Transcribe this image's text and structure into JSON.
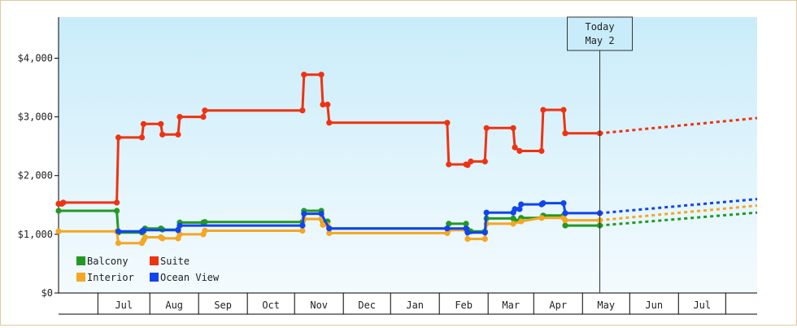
{
  "chart_data": {
    "type": "line",
    "title": "",
    "xlabel": "",
    "ylabel": "",
    "ylim": [
      0,
      4700
    ],
    "y_ticks": [
      0,
      1000,
      2000,
      3000,
      4000
    ],
    "y_tick_labels": [
      "$0",
      "$1,000",
      "$2,000",
      "$3,000",
      "$4,000"
    ],
    "x_range": [
      "2023-05-24",
      "2024-08-10"
    ],
    "months": [
      {
        "label": "Jul",
        "start": "2023-06-18",
        "end": "2023-07-21"
      },
      {
        "label": "Aug",
        "start": "2023-07-21",
        "end": "2023-08-21"
      },
      {
        "label": "Sep",
        "start": "2023-08-21",
        "end": "2023-09-21"
      },
      {
        "label": "Oct",
        "start": "2023-09-21",
        "end": "2023-10-21"
      },
      {
        "label": "Nov",
        "start": "2023-10-21",
        "end": "2023-11-21"
      },
      {
        "label": "Dec",
        "start": "2023-11-21",
        "end": "2023-12-21"
      },
      {
        "label": "Jan",
        "start": "2023-12-21",
        "end": "2024-01-21"
      },
      {
        "label": "Feb",
        "start": "2024-01-21",
        "end": "2024-02-21"
      },
      {
        "label": "Mar",
        "start": "2024-02-21",
        "end": "2024-03-21"
      },
      {
        "label": "Apr",
        "start": "2024-03-21",
        "end": "2024-04-21"
      },
      {
        "label": "May",
        "start": "2024-04-21",
        "end": "2024-05-21"
      },
      {
        "label": "Jun",
        "start": "2024-05-21",
        "end": "2024-06-21"
      },
      {
        "label": "Jul",
        "start": "2024-06-21",
        "end": "2024-07-21"
      }
    ],
    "today": {
      "date": "2024-05-02",
      "line1": "Today",
      "line2": "May 2"
    },
    "legend": {
      "placement": "bottom-left"
    },
    "grid": false,
    "series": [
      {
        "name": "Balcony",
        "color": "#229922",
        "points": [
          [
            "2023-05-24",
            1400
          ],
          [
            "2023-06-30",
            1400
          ],
          [
            "2023-07-01",
            1030
          ],
          [
            "2023-07-16",
            1030
          ],
          [
            "2023-07-17",
            1050
          ],
          [
            "2023-07-18",
            1100
          ],
          [
            "2023-07-28",
            1100
          ],
          [
            "2023-07-29",
            1080
          ],
          [
            "2023-08-08",
            1080
          ],
          [
            "2023-08-09",
            1200
          ],
          [
            "2023-08-24",
            1200
          ],
          [
            "2023-08-25",
            1210
          ],
          [
            "2023-10-26",
            1210
          ],
          [
            "2023-10-27",
            1400
          ],
          [
            "2023-11-07",
            1400
          ],
          [
            "2023-11-08",
            1220
          ],
          [
            "2023-11-11",
            1220
          ],
          [
            "2023-11-12",
            1100
          ],
          [
            "2024-01-26",
            1100
          ],
          [
            "2024-01-27",
            1180
          ],
          [
            "2024-02-07",
            1180
          ],
          [
            "2024-02-08",
            1080
          ],
          [
            "2024-02-10",
            1050
          ],
          [
            "2024-02-19",
            1050
          ],
          [
            "2024-02-20",
            1270
          ],
          [
            "2024-03-08",
            1270
          ],
          [
            "2024-03-09",
            1230
          ],
          [
            "2024-03-12",
            1230
          ],
          [
            "2024-03-13",
            1280
          ],
          [
            "2024-03-26",
            1280
          ],
          [
            "2024-03-27",
            1320
          ],
          [
            "2024-04-09",
            1320
          ],
          [
            "2024-04-10",
            1150
          ],
          [
            "2024-05-02",
            1150
          ]
        ],
        "forecast": [
          [
            "2024-05-02",
            1150
          ],
          [
            "2024-08-10",
            1370
          ]
        ]
      },
      {
        "name": "Suite",
        "color": "#ee3311",
        "points": [
          [
            "2023-05-24",
            1520
          ],
          [
            "2023-05-26",
            1520
          ],
          [
            "2023-05-27",
            1540
          ],
          [
            "2023-06-30",
            1540
          ],
          [
            "2023-07-01",
            2650
          ],
          [
            "2023-07-16",
            2650
          ],
          [
            "2023-07-17",
            2880
          ],
          [
            "2023-07-28",
            2880
          ],
          [
            "2023-07-29",
            2700
          ],
          [
            "2023-08-08",
            2700
          ],
          [
            "2023-08-09",
            3000
          ],
          [
            "2023-08-24",
            3000
          ],
          [
            "2023-08-25",
            3110
          ],
          [
            "2023-10-26",
            3110
          ],
          [
            "2023-10-27",
            3720
          ],
          [
            "2023-11-07",
            3720
          ],
          [
            "2023-11-08",
            3210
          ],
          [
            "2023-11-11",
            3210
          ],
          [
            "2023-11-12",
            2900
          ],
          [
            "2024-01-26",
            2900
          ],
          [
            "2024-01-27",
            2190
          ],
          [
            "2024-02-07",
            2190
          ],
          [
            "2024-02-08",
            2180
          ],
          [
            "2024-02-10",
            2240
          ],
          [
            "2024-02-19",
            2240
          ],
          [
            "2024-02-20",
            2810
          ],
          [
            "2024-03-08",
            2810
          ],
          [
            "2024-03-09",
            2480
          ],
          [
            "2024-03-12",
            2420
          ],
          [
            "2024-03-26",
            2420
          ],
          [
            "2024-03-27",
            3120
          ],
          [
            "2024-04-09",
            3120
          ],
          [
            "2024-04-10",
            2720
          ],
          [
            "2024-05-02",
            2720
          ]
        ],
        "forecast": [
          [
            "2024-05-02",
            2720
          ],
          [
            "2024-08-10",
            2980
          ]
        ]
      },
      {
        "name": "Interior",
        "color": "#f5a623",
        "points": [
          [
            "2023-05-24",
            1050
          ],
          [
            "2023-06-30",
            1050
          ],
          [
            "2023-07-01",
            850
          ],
          [
            "2023-07-16",
            850
          ],
          [
            "2023-07-17",
            900
          ],
          [
            "2023-07-18",
            950
          ],
          [
            "2023-07-28",
            950
          ],
          [
            "2023-07-29",
            930
          ],
          [
            "2023-08-08",
            930
          ],
          [
            "2023-08-09",
            1000
          ],
          [
            "2023-08-24",
            1000
          ],
          [
            "2023-08-25",
            1060
          ],
          [
            "2023-10-26",
            1060
          ],
          [
            "2023-10-27",
            1260
          ],
          [
            "2023-11-07",
            1260
          ],
          [
            "2023-11-08",
            1160
          ],
          [
            "2023-11-11",
            1160
          ],
          [
            "2023-11-12",
            1020
          ],
          [
            "2024-01-26",
            1020
          ],
          [
            "2024-01-27",
            1070
          ],
          [
            "2024-02-07",
            1070
          ],
          [
            "2024-02-08",
            920
          ],
          [
            "2024-02-19",
            920
          ],
          [
            "2024-02-20",
            1180
          ],
          [
            "2024-03-08",
            1180
          ],
          [
            "2024-03-13",
            1220
          ],
          [
            "2024-03-26",
            1280
          ],
          [
            "2024-04-09",
            1280
          ],
          [
            "2024-04-10",
            1240
          ],
          [
            "2024-05-02",
            1240
          ]
        ],
        "forecast": [
          [
            "2024-05-02",
            1240
          ],
          [
            "2024-08-10",
            1490
          ]
        ]
      },
      {
        "name": "Ocean View",
        "color": "#1144ee",
        "points": [
          [
            "2023-07-01",
            1050
          ],
          [
            "2023-07-16",
            1050
          ],
          [
            "2023-07-17",
            1070
          ],
          [
            "2023-08-08",
            1070
          ],
          [
            "2023-08-09",
            1150
          ],
          [
            "2023-10-26",
            1150
          ],
          [
            "2023-10-27",
            1350
          ],
          [
            "2023-11-07",
            1350
          ],
          [
            "2023-11-12",
            1100
          ],
          [
            "2024-01-26",
            1100
          ],
          [
            "2024-02-07",
            1100
          ],
          [
            "2024-02-08",
            1030
          ],
          [
            "2024-02-19",
            1030
          ],
          [
            "2024-02-20",
            1370
          ],
          [
            "2024-03-08",
            1370
          ],
          [
            "2024-03-09",
            1430
          ],
          [
            "2024-03-12",
            1430
          ],
          [
            "2024-03-13",
            1510
          ],
          [
            "2024-03-26",
            1510
          ],
          [
            "2024-03-27",
            1530
          ],
          [
            "2024-04-09",
            1530
          ],
          [
            "2024-04-10",
            1360
          ],
          [
            "2024-05-02",
            1360
          ]
        ],
        "forecast": [
          [
            "2024-05-02",
            1360
          ],
          [
            "2024-08-10",
            1600
          ]
        ]
      }
    ]
  }
}
